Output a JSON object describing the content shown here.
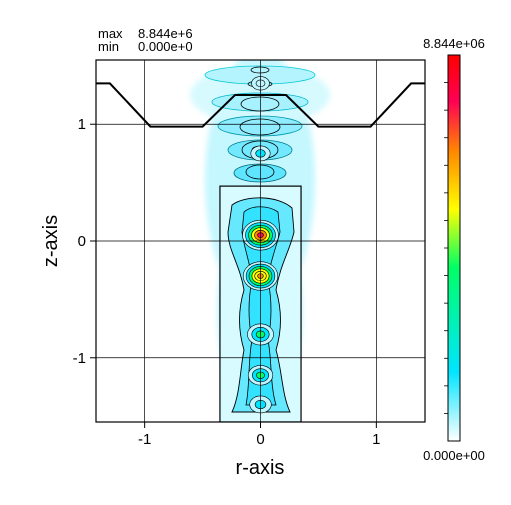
{
  "stats": {
    "max_label": "max",
    "max_value": "8.844e+6",
    "min_label": "min",
    "min_value": "0.000e+0"
  },
  "chart_data": {
    "type": "heatmap",
    "title": "",
    "xlabel": "r-axis",
    "ylabel": "z-axis",
    "xlim": [
      -1.42,
      1.42
    ],
    "ylim": [
      -1.55,
      1.55
    ],
    "xticks": [
      -1,
      0,
      1
    ],
    "xtick_labels": [
      "-1",
      "0",
      "1"
    ],
    "yticks": [
      -1,
      0,
      1
    ],
    "ytick_labels": [
      "-1",
      "0",
      "1"
    ],
    "grid": true,
    "colorbar": {
      "max_label": "8.844e+06",
      "min_label": "0.000e+00",
      "max": 8844000,
      "min": 0,
      "colors": [
        "#ffffff",
        "#00e5ff",
        "#00ff66",
        "#ffff00",
        "#ff8800",
        "#ff0055",
        "#ff0000"
      ]
    },
    "boundary": [
      [
        -1.42,
        1.35
      ],
      [
        -1.3,
        1.35
      ],
      [
        -0.95,
        0.98
      ],
      [
        -0.5,
        0.98
      ],
      [
        -0.22,
        1.25
      ],
      [
        0.22,
        1.25
      ],
      [
        0.5,
        0.98
      ],
      [
        0.95,
        0.98
      ],
      [
        1.3,
        1.35
      ],
      [
        1.42,
        1.35
      ]
    ],
    "region": {
      "r": [
        -0.35,
        0.35
      ],
      "z": [
        -1.55,
        0.47
      ]
    },
    "hotspots": [
      {
        "r": 0.0,
        "z": 0.05,
        "value": 8844000
      },
      {
        "r": 0.0,
        "z": -0.3,
        "value": 8200000
      },
      {
        "r": 0.0,
        "z": -0.8,
        "value": 4500000
      },
      {
        "r": 0.0,
        "z": -1.15,
        "value": 3800000
      },
      {
        "r": 0.0,
        "z": -1.4,
        "value": 2500000
      },
      {
        "r": 0.0,
        "z": 0.75,
        "value": 1500000
      },
      {
        "r": 0.0,
        "z": 1.35,
        "value": 800000
      }
    ]
  }
}
